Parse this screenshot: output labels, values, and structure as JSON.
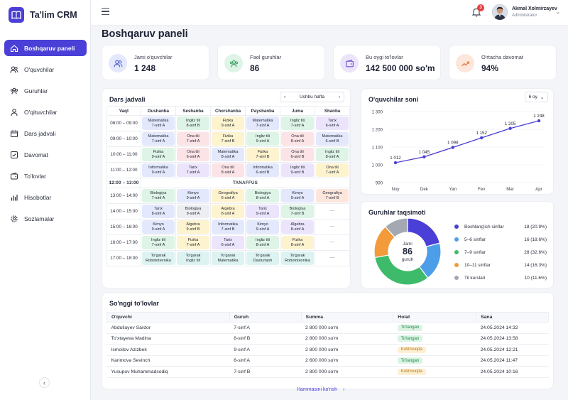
{
  "app": {
    "name": "Ta'lim CRM"
  },
  "nav": [
    {
      "label": "Boshqaruv paneli",
      "icon": "home-icon",
      "active": true
    },
    {
      "label": "O'quvchilar",
      "icon": "users-icon"
    },
    {
      "label": "Guruhlar",
      "icon": "group-icon"
    },
    {
      "label": "O'qituvchilar",
      "icon": "teacher-icon"
    },
    {
      "label": "Dars jadvali",
      "icon": "calendar-icon"
    },
    {
      "label": "Davomat",
      "icon": "checkbox-icon"
    },
    {
      "label": "To'lovlar",
      "icon": "wallet-icon"
    },
    {
      "label": "Hisobotlar",
      "icon": "report-icon"
    },
    {
      "label": "Sozlamalar",
      "icon": "gear-icon"
    }
  ],
  "topbar": {
    "notifications": "3",
    "user_name": "Akmal Xolmirzayev",
    "user_role": "Administrator"
  },
  "page_title": "Boshqaruv paneli",
  "stats": [
    {
      "label": "Jami o'quvchilar",
      "value": "1 248",
      "color": "#e3e8fc",
      "accent": "#4a5bd4",
      "icon": "users-icon"
    },
    {
      "label": "Faol guruhlar",
      "value": "86",
      "color": "#def4e6",
      "accent": "#2f9e5b",
      "icon": "group-icon"
    },
    {
      "label": "Bu oygi to'lovlar",
      "value": "142 500 000 so'm",
      "color": "#ebe4fb",
      "accent": "#6b4fd1",
      "icon": "wallet-icon"
    },
    {
      "label": "O'rtacha davomat",
      "value": "94%",
      "color": "#fde6dc",
      "accent": "#e67a3a",
      "icon": "trend-icon"
    }
  ],
  "schedule": {
    "title": "Dars jadvali",
    "week_label": "Ushbu hafta",
    "corner": "Vaqt",
    "days": [
      "Dushanba",
      "Seshanba",
      "Chorshanba",
      "Payshanba",
      "Juma",
      "Shanba"
    ],
    "break_label": "TANAFFUS",
    "rows": [
      {
        "time": "08:00 – 09:00",
        "cells": [
          [
            "Matematika",
            "7-sinf A",
            "blue"
          ],
          [
            "Ingliz tili",
            "8-sinf B",
            "green"
          ],
          [
            "Fizika",
            "9-sinf A",
            "yellow"
          ],
          [
            "Matematika",
            "7-sinf A",
            "blue"
          ],
          [
            "Ingliz tili",
            "7-sinf A",
            "green"
          ],
          [
            "Tarix",
            "6-sinf A",
            "purple"
          ]
        ]
      },
      {
        "time": "09:00 – 10:00",
        "cells": [
          [
            "Matematika",
            "7-sinf A",
            "blue"
          ],
          [
            "Ona tili",
            "7-sinf A",
            "pink"
          ],
          [
            "Fizika",
            "7-sinf B",
            "yellow"
          ],
          [
            "Ingliz tili",
            "9-sinf A",
            "green"
          ],
          [
            "Ona tili",
            "8-sinf A",
            "pink"
          ],
          [
            "Matematika",
            "6-sinf B",
            "blue"
          ]
        ]
      },
      {
        "time": "10:00 – 11:00",
        "cells": [
          [
            "Fizika",
            "9-sinf A",
            "green"
          ],
          [
            "Ona tili",
            "6-sinf A",
            "pink"
          ],
          [
            "Matematika",
            "8-sinf A",
            "blue"
          ],
          [
            "Fizika",
            "7-sinf B",
            "yellow"
          ],
          [
            "Ona tili",
            "6-sinf B",
            "pink"
          ],
          [
            "Ingliz tili",
            "8-sinf A",
            "green"
          ]
        ]
      },
      {
        "time": "11:00 – 12:00",
        "cells": [
          [
            "Informatika",
            "9-sinf A",
            "blue"
          ],
          [
            "Tarix",
            "7-sinf A",
            "purple"
          ],
          [
            "Ona tili",
            "8-sinf A",
            "pink"
          ],
          [
            "Informatika",
            "6-sinf B",
            "blue"
          ],
          [
            "Ingliz tili",
            "9-sinf B",
            "purple"
          ],
          [
            "Ona tili",
            "7-sinf A",
            "yellow"
          ]
        ]
      },
      {
        "break": true,
        "time": "12:00 – 13:00"
      },
      {
        "time": "13:00 – 14:00",
        "cells": [
          [
            "Biologiya",
            "7-sinf A",
            "green"
          ],
          [
            "Kimyo",
            "9-sinf A",
            "blue"
          ],
          [
            "Geografiya",
            "6-sinf A",
            "yellow"
          ],
          [
            "Biologiya",
            "8-sinf A",
            "green"
          ],
          [
            "Kimyo",
            "9-sinf A",
            "blue"
          ],
          [
            "Geografiya",
            "7-sinf B",
            "orange"
          ]
        ]
      },
      {
        "time": "14:00 – 15:00",
        "cells": [
          [
            "Tarix",
            "8-sinf A",
            "blue"
          ],
          [
            "Biologiya",
            "9-sinf A",
            "gray"
          ],
          [
            "Algebra",
            "8-sinf A",
            "yellow"
          ],
          [
            "Tarix",
            "9-sinf A",
            "purple"
          ],
          [
            "Biologiya",
            "7-sinf B",
            "green"
          ],
          [
            "—",
            "",
            "none"
          ]
        ]
      },
      {
        "time": "15:00 – 16:00",
        "cells": [
          [
            "Kimyo",
            "9-sinf A",
            "blue"
          ],
          [
            "Algebra",
            "9-sinf B",
            "yellow"
          ],
          [
            "Informatika",
            "7-sinf B",
            "blue"
          ],
          [
            "Kimyo",
            "9-sinf A",
            "blue"
          ],
          [
            "Algebra",
            "8-sinf A",
            "purple"
          ],
          [
            "—",
            "",
            "none"
          ]
        ]
      },
      {
        "time": "16:00 – 17:00",
        "cells": [
          [
            "Ingliz tili",
            "7-sinf A",
            "green"
          ],
          [
            "Fizika",
            "7-sinf A",
            "yellow"
          ],
          [
            "Tarix",
            "6-sinf A",
            "purple"
          ],
          [
            "Ingliz tili",
            "8-sinf A",
            "green"
          ],
          [
            "Fizika",
            "8-sinf A",
            "yellow"
          ],
          [
            "—",
            "",
            "none"
          ]
        ]
      },
      {
        "time": "17:00 – 18:00",
        "cells": [
          [
            "To'garak",
            "Robototexnika",
            "teal"
          ],
          [
            "To'garak",
            "Ingliz tili",
            "teal"
          ],
          [
            "To'garak",
            "Matematika",
            "teal"
          ],
          [
            "To'garak",
            "Dasturlash",
            "teal"
          ],
          [
            "To'garak",
            "Robototexnika",
            "teal"
          ],
          [
            "—",
            "",
            "none"
          ]
        ]
      }
    ]
  },
  "students_chart": {
    "title": "O'quvchilar soni",
    "period": "6 oy",
    "chart_data": {
      "type": "line",
      "categories": [
        "Noy",
        "Dek",
        "Yan",
        "Fev",
        "Mar",
        "Apr"
      ],
      "values": [
        1012,
        1045,
        1098,
        1152,
        1205,
        1248
      ],
      "labels": [
        "1 012",
        "1 045",
        "1 098",
        "1 152",
        "1 205",
        "1 248"
      ],
      "ylim": [
        900,
        1300
      ],
      "yticks": [
        900,
        1000,
        1100,
        1200,
        1300
      ],
      "ytick_labels": [
        "900",
        "1 000",
        "1 100",
        "1 200",
        "1 300"
      ],
      "grid": true,
      "color": "#4a3fd6"
    }
  },
  "groups": {
    "title": "Guruhlar taqsimoti",
    "center_top": "Jami",
    "center_value": "86",
    "center_bottom": "guruh",
    "chart_data": {
      "type": "pie",
      "categories": [
        "Boshlang'ich sinflar",
        "5–6 sinflar",
        "7–9 sinflar",
        "10–11 sinflar",
        "Til kurslari"
      ],
      "values": [
        18,
        16,
        28,
        14,
        10
      ],
      "value_labels": [
        "18 (20.9%)",
        "16 (18.6%)",
        "28 (32.6%)",
        "14 (16.3%)",
        "10 (11.6%)"
      ],
      "colors": [
        "#4a3fd6",
        "#4c9ee8",
        "#3dbb6a",
        "#f39a3a",
        "#a3a8b3"
      ]
    }
  },
  "payments": {
    "title": "So'nggi to'lovlar",
    "columns": [
      "O'quvchi",
      "Guruh",
      "Summa",
      "Holat",
      "Sana"
    ],
    "rows": [
      [
        "Abdullayev Sardor",
        "7-sinf A",
        "2 800 000 so'm",
        "To'langan",
        "24.05.2024 14:32",
        "paid"
      ],
      [
        "To'xtayeva Madina",
        "8-sinf B",
        "2 800 000 so'm",
        "To'langan",
        "24.05.2024 13:58",
        "paid"
      ],
      [
        "Ismoilov Azizbek",
        "9-sinf A",
        "2 800 000 so'm",
        "Kutilmoqda",
        "24.05.2024 12:21",
        "wait"
      ],
      [
        "Karimova Sevinch",
        "6-sinf A",
        "2 600 000 so'm",
        "To'langan",
        "24.05.2024 11:47",
        "paid"
      ],
      [
        "Yusupov Muhammadsodiq",
        "7-sinf B",
        "2 800 000 so'm",
        "Kutilmoqda",
        "24.05.2024 10:16",
        "wait"
      ]
    ],
    "see_all": "Hammasini ko'rish"
  }
}
